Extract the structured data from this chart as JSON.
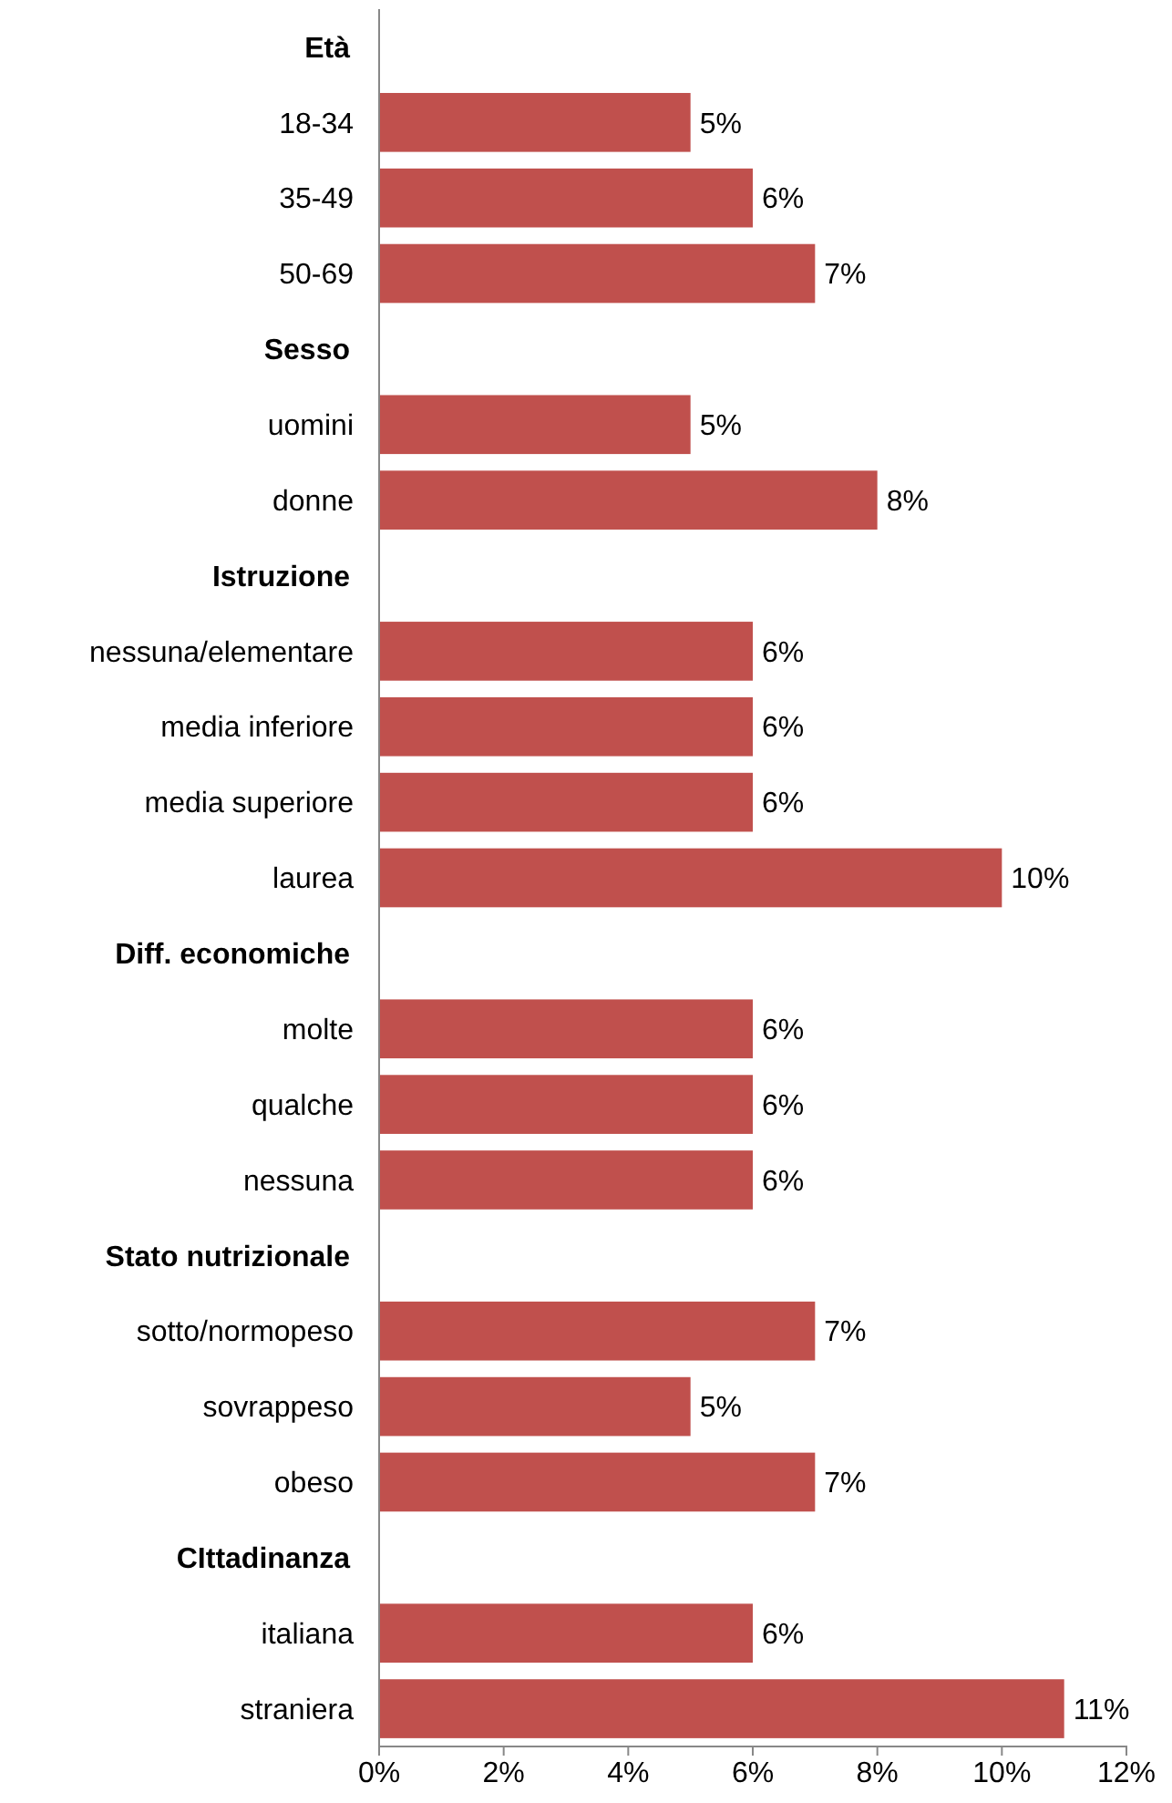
{
  "chart_data": {
    "type": "bar",
    "orientation": "horizontal",
    "categories": [
      "Età",
      "18-34",
      "35-49",
      "50-69",
      "Sesso",
      "uomini",
      "donne",
      "Istruzione",
      "nessuna/elementare",
      "media inferiore",
      "media superiore",
      "laurea",
      "Diff. economiche",
      "molte",
      "qualche",
      "nessuna",
      "Stato nutrizionale",
      "sotto/normopeso",
      "sovrappeso",
      "obeso",
      "CIttadinanza",
      "italiana",
      "straniera"
    ],
    "values": [
      null,
      5,
      6,
      7,
      null,
      5,
      8,
      null,
      6,
      6,
      6,
      10,
      null,
      6,
      6,
      6,
      null,
      7,
      5,
      7,
      null,
      6,
      11
    ],
    "value_labels": [
      null,
      "5%",
      "6%",
      "7%",
      null,
      "5%",
      "8%",
      null,
      "6%",
      "6%",
      "6%",
      "10%",
      null,
      "6%",
      "6%",
      "6%",
      null,
      "7%",
      "5%",
      "7%",
      null,
      "6%",
      "11%"
    ],
    "color": "#c0504d",
    "xlim": [
      0,
      12
    ],
    "xticks": [
      {
        "value": 0,
        "label": "0%"
      },
      {
        "value": 2,
        "label": "2%"
      },
      {
        "value": 4,
        "label": "4%"
      },
      {
        "value": 6,
        "label": "6%"
      },
      {
        "value": 8,
        "label": "8%"
      },
      {
        "value": 10,
        "label": "10%"
      },
      {
        "value": 12,
        "label": "12%"
      }
    ],
    "grid": false
  }
}
